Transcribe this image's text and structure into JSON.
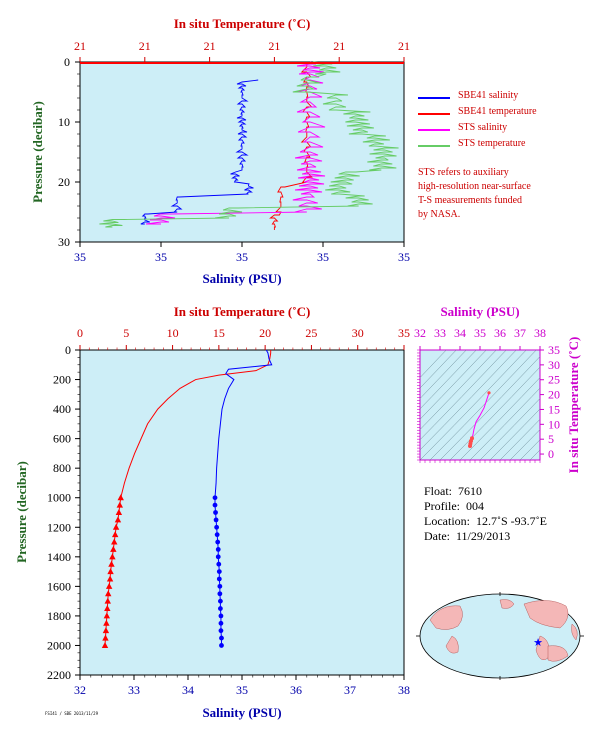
{
  "colors": {
    "plot_bg": "#cdeef7",
    "temp_axis": "#cc0000",
    "sal_axis": "#0000aa",
    "pressure_axis": "#226622",
    "ts_axis": "#cc00cc",
    "sbe_salinity": "#0000ff",
    "sbe_temperature": "#ff0000",
    "sts_salinity": "#ff00ff",
    "sts_temperature": "#66cc66"
  },
  "top_plot": {
    "top_axis_label": "In situ Temperature (˚C)",
    "top_ticks": [
      "21",
      "21",
      "21",
      "21",
      "21",
      "21"
    ],
    "bottom_axis_label": "Salinity (PSU)",
    "bottom_ticks": [
      "35",
      "35",
      "35",
      "35",
      "35"
    ],
    "left_axis_label": "Pressure (decibar)",
    "left_ticks": [
      "0",
      "10",
      "20",
      "30"
    ]
  },
  "legend": {
    "items": [
      {
        "label": "SBE41 salinity",
        "color_key": "sbe_salinity"
      },
      {
        "label": "SBE41 temperature",
        "color_key": "sbe_temperature"
      },
      {
        "label": "STS salinity",
        "color_key": "sts_salinity"
      },
      {
        "label": "STS temperature",
        "color_key": "sts_temperature"
      }
    ],
    "note": "STS refers to auxiliary\nhigh-resolution near-surface\nT-S measurements funded\nby NASA."
  },
  "main_plot": {
    "top_axis_label": "In situ Temperature (˚C)",
    "bottom_axis_label": "Salinity (PSU)",
    "left_axis_label": "Pressure (decibar)"
  },
  "ts_plot": {
    "top_axis_label": "Salinity (PSU)",
    "right_axis_label": "In situ Temperature (˚C)"
  },
  "info": {
    "float_label": "Float:",
    "float_value": "7610",
    "profile_label": "Profile:",
    "profile_value": "004",
    "location_label": "Location:",
    "location_value": "12.7˚S  -93.7˚E",
    "date_label": "Date:",
    "date_value": "11/29/2013"
  },
  "credit_text": "FSI41 / SBE 2013/11/29",
  "chart_data": [
    {
      "type": "line",
      "title": "",
      "y_label": "Pressure (decibar)",
      "y_range": [
        0,
        30
      ],
      "y_reversed": true,
      "x_top_label": "In situ Temperature (˚C)",
      "x_bottom_label": "Salinity (PSU)",
      "legend_position": "right",
      "series": [
        {
          "name": "SBE41 salinity",
          "pressure": [
            3,
            5,
            8,
            10,
            12,
            15,
            18,
            20,
            22,
            25,
            27
          ],
          "salinity_frac": [
            0.55,
            0.5,
            0.5,
            0.5,
            0.5,
            0.5,
            0.5,
            0.48,
            0.52,
            0.3,
            0.2
          ]
        },
        {
          "name": "SBE41 temperature",
          "pressure": [
            0,
            5,
            10,
            15,
            20,
            25,
            28
          ],
          "temperature_frac": [
            0.7,
            0.7,
            0.7,
            0.7,
            0.7,
            0.62,
            0.6
          ]
        },
        {
          "name": "STS salinity",
          "pressure": [
            0,
            2,
            5,
            10,
            15,
            18,
            20,
            22,
            25,
            27
          ],
          "salinity_frac": [
            0.71,
            0.71,
            0.71,
            0.71,
            0.71,
            0.71,
            0.71,
            0.71,
            0.7,
            0.25
          ]
        },
        {
          "name": "STS temperature",
          "pressure": [
            0,
            2,
            5,
            8,
            10,
            12,
            14,
            16,
            18,
            20,
            22,
            24,
            26,
            27.5
          ],
          "temperature_frac": [
            0.72,
            0.76,
            0.7,
            0.79,
            0.85,
            0.87,
            0.91,
            0.94,
            0.93,
            0.82,
            0.8,
            0.86,
            0.46,
            0.1
          ]
        }
      ]
    },
    {
      "type": "line",
      "title": "",
      "y_label": "Pressure (decibar)",
      "y_range": [
        0,
        2200
      ],
      "y_reversed": true,
      "y_ticks": [
        0,
        200,
        400,
        600,
        800,
        1000,
        1200,
        1400,
        1600,
        1800,
        2000,
        2200
      ],
      "x_top_label": "In situ Temperature (˚C)",
      "x_top_range": [
        0,
        35
      ],
      "x_top_ticks": [
        0,
        5,
        10,
        15,
        20,
        25,
        30,
        35
      ],
      "x_bottom_label": "Salinity (PSU)",
      "x_bottom_range": [
        32,
        38
      ],
      "x_bottom_ticks": [
        32,
        33,
        34,
        35,
        36,
        37,
        38
      ],
      "series": [
        {
          "name": "Temperature",
          "axis": "top",
          "marker": "triangle",
          "color_key": "sbe_temperature",
          "pressure": [
            0,
            20,
            60,
            100,
            140,
            170,
            200,
            260,
            330,
            400,
            500,
            600,
            700,
            800,
            900,
            1000,
            1050,
            1100,
            1150,
            1200,
            1250,
            1300,
            1350,
            1400,
            1450,
            1500,
            1550,
            1600,
            1650,
            1700,
            1750,
            1800,
            1850,
            1900,
            1950,
            2000
          ],
          "values": [
            20.6,
            20.6,
            20.5,
            20.3,
            19.0,
            15.0,
            12.5,
            10.8,
            9.5,
            8.4,
            7.3,
            6.6,
            5.9,
            5.3,
            4.8,
            4.4,
            4.3,
            4.2,
            4.1,
            3.9,
            3.8,
            3.7,
            3.6,
            3.5,
            3.4,
            3.3,
            3.25,
            3.15,
            3.05,
            3.0,
            2.95,
            2.9,
            2.85,
            2.8,
            2.75,
            2.7
          ]
        },
        {
          "name": "Salinity",
          "axis": "bottom",
          "marker": "circle",
          "color_key": "sbe_salinity",
          "pressure": [
            0,
            20,
            60,
            100,
            130,
            160,
            200,
            260,
            330,
            400,
            500,
            600,
            700,
            800,
            900,
            1000,
            1050,
            1100,
            1150,
            1200,
            1250,
            1300,
            1350,
            1400,
            1450,
            1500,
            1550,
            1600,
            1650,
            1700,
            1750,
            1800,
            1850,
            1900,
            1950,
            2000
          ],
          "values": [
            35.45,
            35.48,
            35.5,
            35.55,
            34.75,
            34.7,
            34.85,
            34.75,
            34.68,
            34.63,
            34.6,
            34.57,
            34.55,
            34.53,
            34.52,
            34.5,
            34.5,
            34.51,
            34.52,
            34.53,
            34.54,
            34.55,
            34.56,
            34.56,
            34.57,
            34.58,
            34.58,
            34.59,
            34.59,
            34.6,
            34.6,
            34.61,
            34.61,
            34.61,
            34.62,
            34.62
          ]
        }
      ]
    },
    {
      "type": "scatter",
      "title": "",
      "x_label": "Salinity (PSU)",
      "x_range": [
        32,
        38
      ],
      "x_ticks": [
        32,
        33,
        34,
        35,
        36,
        37,
        38
      ],
      "y_label": "In situ Temperature (˚C)",
      "y_range": [
        -2,
        35
      ],
      "y_ticks": [
        0,
        5,
        10,
        15,
        20,
        25,
        30,
        35
      ],
      "series": [
        {
          "name": "T-S",
          "salinity": [
            34.5,
            34.52,
            34.55,
            34.6,
            34.65,
            34.7,
            34.8,
            35.0,
            35.2,
            35.45
          ],
          "temperature": [
            2.7,
            3.5,
            4.4,
            5.3,
            6.6,
            8.4,
            10.8,
            13.0,
            15.5,
            20.6
          ]
        }
      ]
    }
  ]
}
